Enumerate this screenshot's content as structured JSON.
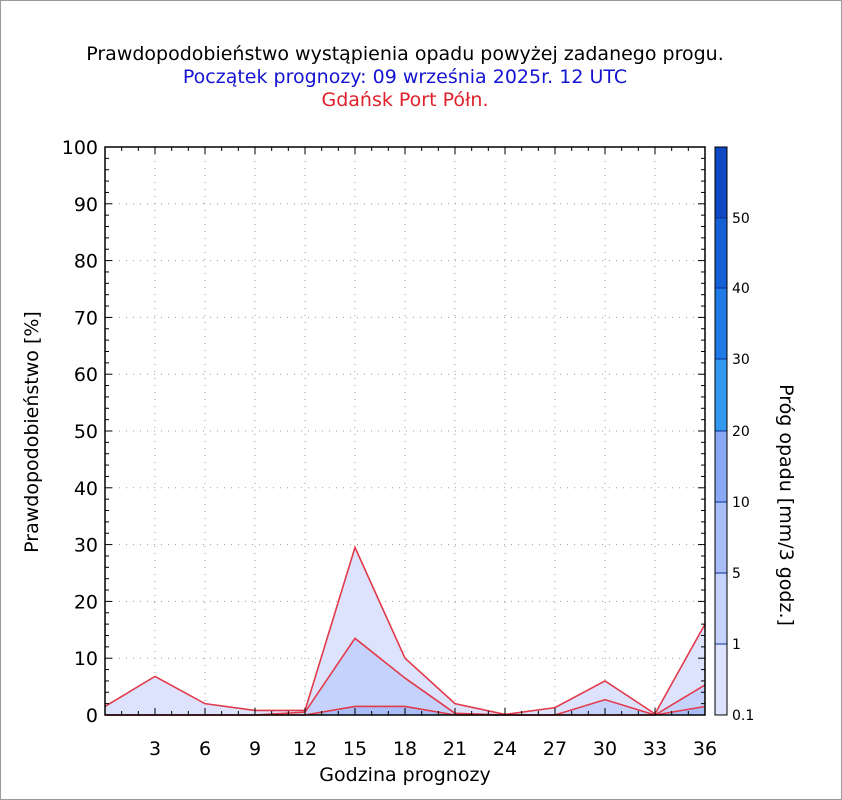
{
  "titles": {
    "line1": "Prawdopodobieństwo wystąpienia opadu powyżej zadanego progu.",
    "line2": "Początek prognozy: 09 września 2025r. 12 UTC",
    "line3": "Gdańsk Port Półn."
  },
  "colors": {
    "line2": "#1414d2",
    "line3": "#e0202a",
    "outline": "#e23a4a",
    "bands": [
      "#dde3fd",
      "#c5d2fb",
      "#a9bdf8",
      "#8aa8f4",
      "#3399f0",
      "#1f7ae6",
      "#1660d6",
      "#0e48c2",
      "#0a37ad"
    ]
  },
  "chart_data": {
    "type": "area",
    "xlabel": "Godzina prognozy",
    "ylabel": "Prawdopodobieństwo [%]",
    "colorbar_label": "Próg opadu [mm/3 godz.]",
    "x": [
      0,
      3,
      6,
      9,
      12,
      15,
      18,
      21,
      24,
      27,
      30,
      33,
      36
    ],
    "xticks": [
      3,
      6,
      9,
      12,
      15,
      18,
      21,
      24,
      27,
      30,
      33,
      36
    ],
    "xlim": [
      0,
      36
    ],
    "ylim": [
      0,
      100
    ],
    "yticks": [
      0,
      10,
      20,
      30,
      40,
      50,
      60,
      70,
      80,
      90,
      100
    ],
    "grid": true,
    "colorbar_ticks": [
      "0.1",
      "1",
      "5",
      "10",
      "20",
      "30",
      "40",
      "50"
    ],
    "series": [
      {
        "name": "0.1",
        "values": [
          1.5,
          6.8,
          2.0,
          0.8,
          0.8,
          29.5,
          10.0,
          2.0,
          0.1,
          1.3,
          6.0,
          0.2,
          16.0
        ]
      },
      {
        "name": "1",
        "values": [
          0,
          0,
          0,
          0,
          0.5,
          13.5,
          6.5,
          0.3,
          0,
          0,
          2.7,
          0,
          5.3
        ]
      },
      {
        "name": "5",
        "values": [
          0,
          0,
          0,
          0,
          0,
          1.5,
          1.5,
          0,
          0,
          0,
          0,
          0,
          1.5
        ]
      }
    ]
  }
}
